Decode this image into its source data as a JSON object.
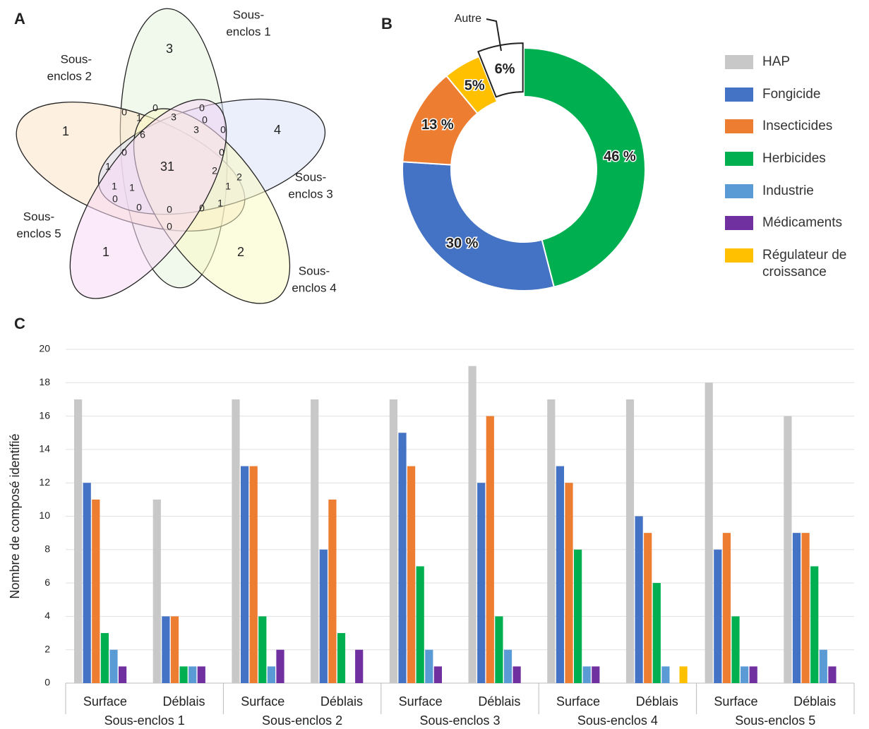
{
  "chart_data": [
    {
      "type": "venn",
      "panel_label": "A",
      "sets": [
        {
          "label": [
            "Sous-",
            "enclos 1"
          ],
          "color": "#e6f4df"
        },
        {
          "label": [
            "Sous-",
            "enclos 2"
          ],
          "color": "#fde3c6"
        },
        {
          "label": [
            "Sous-",
            "enclos 3"
          ],
          "color": "#d9e2f7"
        },
        {
          "label": [
            "Sous-",
            "enclos 4"
          ],
          "color": "#fafac4"
        },
        {
          "label": [
            "Sous-",
            "enclos 5"
          ],
          "color": "#f8d8f5"
        }
      ],
      "regions": [
        3,
        0,
        1,
        0,
        3,
        0,
        3,
        0,
        0,
        1,
        6,
        4,
        0,
        0,
        31,
        1,
        2,
        2,
        1,
        1,
        1,
        0,
        0,
        0,
        0,
        1,
        0,
        1,
        2
      ]
    },
    {
      "type": "pie",
      "panel_label": "B",
      "donut": true,
      "categories": [
        null,
        null,
        null,
        null,
        "Autre"
      ],
      "values": [
        46,
        30,
        13,
        5,
        6
      ],
      "value_labels": [
        "46 %",
        "30 %",
        "13 %",
        "5%",
        "6%"
      ],
      "colors": [
        "#00b050",
        "#4472c4",
        "#ed7d31",
        "#ffc000",
        "#ffffff"
      ]
    },
    {
      "type": "bar",
      "panel_label": "C",
      "categories": [
        "Surface",
        "Déblais",
        "Surface",
        "Déblais",
        "Surface",
        "Déblais",
        "Surface",
        "Déblais",
        "Surface",
        "Déblais"
      ],
      "groups": [
        "Sous-enclos 1",
        "Sous-enclos 2",
        "Sous-enclos 3",
        "Sous-enclos 4",
        "Sous-enclos 5"
      ],
      "ylabel": "Nombre de composé identifié",
      "ylim": [
        0,
        20
      ],
      "yticks": [
        0,
        2,
        4,
        6,
        8,
        10,
        12,
        14,
        16,
        18,
        20
      ],
      "grid": true,
      "series": [
        {
          "name": "HAP",
          "color": "#c8c8c8",
          "values": [
            17,
            11,
            17,
            17,
            17,
            19,
            17,
            17,
            18,
            16
          ]
        },
        {
          "name": "Fongicide",
          "color": "#4472c4",
          "values": [
            12,
            4,
            13,
            8,
            15,
            12,
            13,
            10,
            8,
            9
          ]
        },
        {
          "name": "Insecticides",
          "color": "#ed7d31",
          "values": [
            11,
            4,
            13,
            11,
            13,
            16,
            12,
            9,
            9,
            9
          ]
        },
        {
          "name": "Herbicides",
          "color": "#00b050",
          "values": [
            3,
            1,
            4,
            3,
            7,
            4,
            8,
            6,
            4,
            7
          ]
        },
        {
          "name": "Industrie",
          "color": "#5b9bd5",
          "values": [
            2,
            1,
            1,
            0,
            2,
            2,
            1,
            1,
            1,
            2
          ]
        },
        {
          "name": "Médicaments",
          "color": "#7030a0",
          "values": [
            1,
            1,
            2,
            2,
            1,
            1,
            1,
            0,
            1,
            1
          ]
        },
        {
          "name": "Régulateur de croissance",
          "color": "#ffc000",
          "values": [
            0,
            0,
            0,
            0,
            0,
            0,
            0,
            1,
            0,
            0
          ]
        }
      ]
    }
  ]
}
